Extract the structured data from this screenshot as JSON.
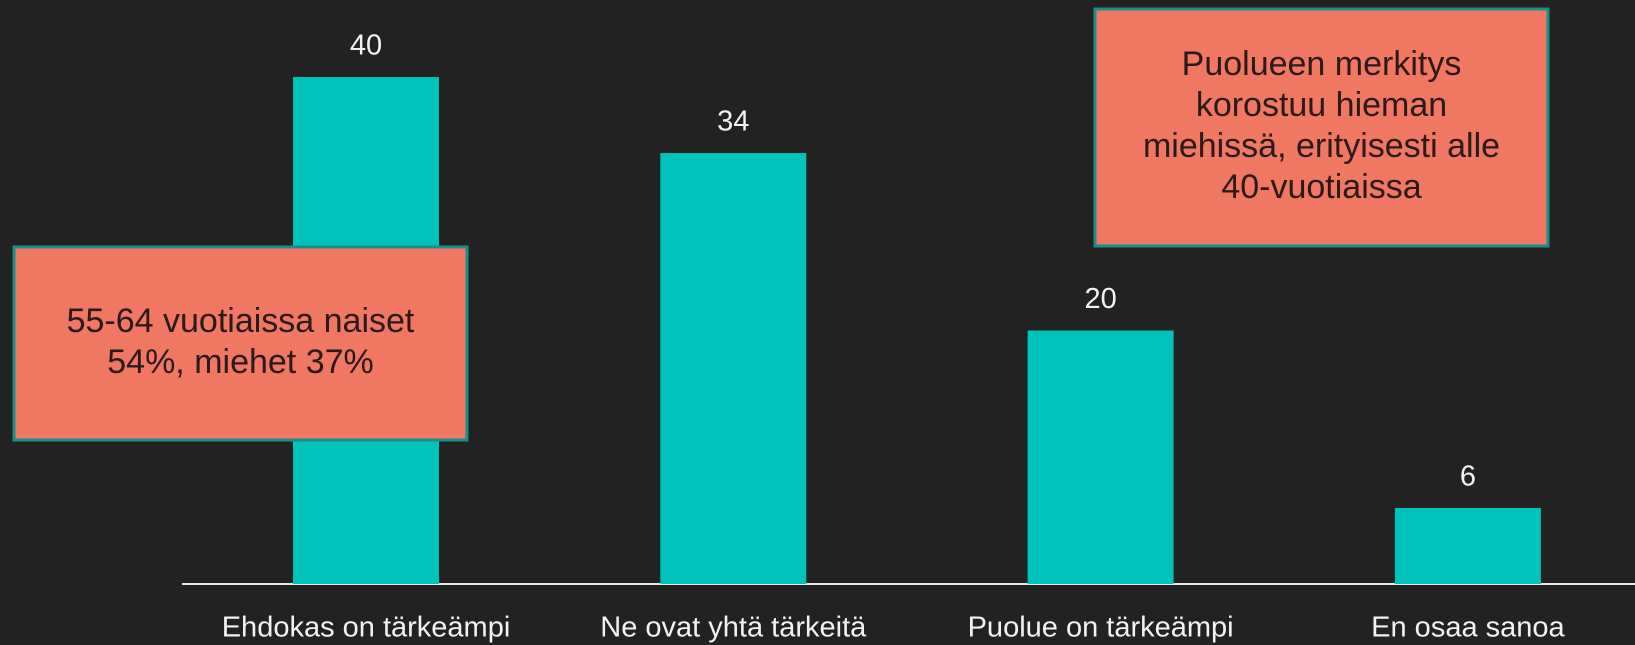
{
  "chart_data": {
    "type": "bar",
    "categories": [
      "Ehdokas on tärkeämpi",
      "Ne ovat yhtä tärkeitä",
      "Puolue on tärkeämpi",
      "En osaa sanoa"
    ],
    "values": [
      40,
      34,
      20,
      6
    ],
    "color": "#00c4bc",
    "annotations": [
      {
        "lines": [
          "55-64 vuotiaissa naiset",
          "54%, miehet 37%"
        ]
      },
      {
        "lines": [
          "Puolueen merkitys",
          "korostuu hieman",
          "miehissä, erityisesti alle",
          "40-vuotiaissa"
        ]
      }
    ]
  }
}
